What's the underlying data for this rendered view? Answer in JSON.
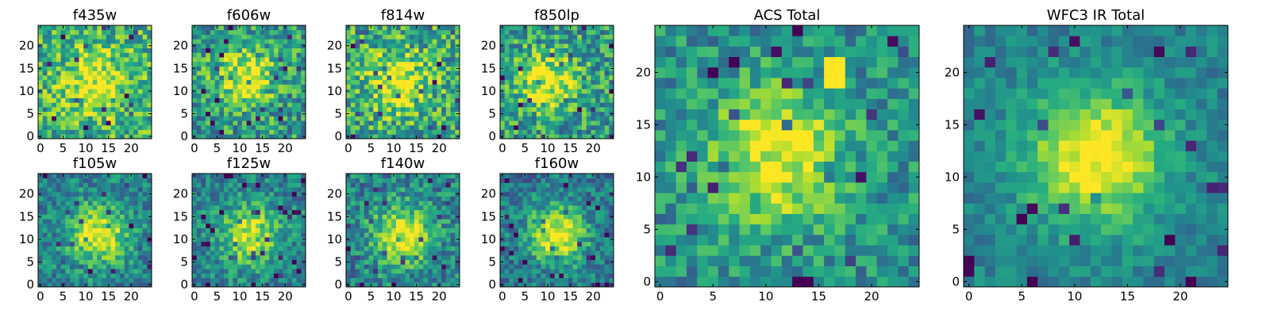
{
  "figure": {
    "panel_count": 10
  },
  "chart_data": [
    {
      "type": "heatmap",
      "title": "f435w",
      "xticks": [
        "0",
        "5",
        "10",
        "15",
        "20"
      ],
      "yticks": [
        "0",
        "5",
        "10",
        "15",
        "20"
      ],
      "grid": [
        25,
        25
      ],
      "xlim": [
        0,
        24
      ],
      "ylim": [
        0,
        24
      ],
      "colormap": "viridis",
      "peak": [
        12,
        12
      ],
      "signal": 0.35,
      "noise": 0.55,
      "base": 0.65,
      "seed": 11
    },
    {
      "type": "heatmap",
      "title": "f606w",
      "xticks": [
        "0",
        "5",
        "10",
        "15",
        "20"
      ],
      "yticks": [
        "0",
        "5",
        "10",
        "15",
        "20"
      ],
      "grid": [
        25,
        25
      ],
      "xlim": [
        0,
        24
      ],
      "ylim": [
        0,
        24
      ],
      "colormap": "viridis",
      "peak": [
        11,
        13
      ],
      "signal": 0.45,
      "noise": 0.55,
      "base": 0.55,
      "seed": 23
    },
    {
      "type": "heatmap",
      "title": "f814w",
      "xticks": [
        "0",
        "5",
        "10",
        "15",
        "20"
      ],
      "yticks": [
        "0",
        "5",
        "10",
        "15",
        "20"
      ],
      "grid": [
        25,
        25
      ],
      "xlim": [
        0,
        24
      ],
      "ylim": [
        0,
        24
      ],
      "colormap": "viridis",
      "peak": [
        11,
        12
      ],
      "signal": 0.45,
      "noise": 0.6,
      "base": 0.6,
      "seed": 37
    },
    {
      "type": "heatmap",
      "title": "f850lp",
      "xticks": [
        "0",
        "5",
        "10",
        "15",
        "20"
      ],
      "yticks": [
        "0",
        "5",
        "10",
        "15",
        "20"
      ],
      "grid": [
        25,
        25
      ],
      "xlim": [
        0,
        24
      ],
      "ylim": [
        0,
        24
      ],
      "colormap": "viridis",
      "peak": [
        10,
        12
      ],
      "signal": 0.45,
      "noise": 0.55,
      "base": 0.55,
      "seed": 41
    },
    {
      "type": "heatmap",
      "title": "f105w",
      "xticks": [
        "0",
        "5",
        "10",
        "15",
        "20"
      ],
      "yticks": [
        "0",
        "5",
        "10",
        "15",
        "20"
      ],
      "grid": [
        25,
        25
      ],
      "xlim": [
        0,
        24
      ],
      "ylim": [
        0,
        24
      ],
      "colormap": "viridis",
      "peak": [
        13,
        11
      ],
      "signal": 0.55,
      "noise": 0.4,
      "base": 0.45,
      "seed": 53
    },
    {
      "type": "heatmap",
      "title": "f125w",
      "xticks": [
        "0",
        "5",
        "10",
        "15",
        "20"
      ],
      "yticks": [
        "0",
        "5",
        "10",
        "15",
        "20"
      ],
      "grid": [
        25,
        25
      ],
      "xlim": [
        0,
        24
      ],
      "ylim": [
        0,
        24
      ],
      "colormap": "viridis",
      "peak": [
        12,
        11
      ],
      "signal": 0.5,
      "noise": 0.4,
      "base": 0.45,
      "seed": 67
    },
    {
      "type": "heatmap",
      "title": "f140w",
      "xticks": [
        "0",
        "5",
        "10",
        "15",
        "20"
      ],
      "yticks": [
        "0",
        "5",
        "10",
        "15",
        "20"
      ],
      "grid": [
        25,
        25
      ],
      "xlim": [
        0,
        24
      ],
      "ylim": [
        0,
        24
      ],
      "colormap": "viridis",
      "peak": [
        12,
        11
      ],
      "signal": 0.55,
      "noise": 0.45,
      "base": 0.45,
      "seed": 79
    },
    {
      "type": "heatmap",
      "title": "f160w",
      "xticks": [
        "0",
        "5",
        "10",
        "15",
        "20"
      ],
      "yticks": [
        "0",
        "5",
        "10",
        "15",
        "20"
      ],
      "grid": [
        25,
        25
      ],
      "xlim": [
        0,
        24
      ],
      "ylim": [
        0,
        24
      ],
      "colormap": "viridis",
      "peak": [
        12,
        11
      ],
      "signal": 0.6,
      "noise": 0.4,
      "base": 0.4,
      "seed": 83
    },
    {
      "type": "heatmap",
      "title": "ACS Total",
      "xticks": [
        "0",
        "5",
        "10",
        "15",
        "20"
      ],
      "yticks": [
        "0",
        "5",
        "10",
        "15",
        "20"
      ],
      "grid": [
        25,
        25
      ],
      "xlim": [
        0,
        24
      ],
      "ylim": [
        0,
        24
      ],
      "colormap": "viridis",
      "peak": [
        11,
        12
      ],
      "signal": 0.5,
      "noise": 0.4,
      "base": 0.5,
      "seed": 97,
      "hotspot": [
        17,
        20
      ]
    },
    {
      "type": "heatmap",
      "title": "WFC3 IR Total",
      "xticks": [
        "0",
        "5",
        "10",
        "15",
        "20"
      ],
      "yticks": [
        "0",
        "5",
        "10",
        "15",
        "20"
      ],
      "grid": [
        25,
        25
      ],
      "xlim": [
        0,
        24
      ],
      "ylim": [
        0,
        24
      ],
      "colormap": "viridis",
      "peak": [
        12,
        12
      ],
      "signal": 0.6,
      "noise": 0.25,
      "base": 0.45,
      "seed": 101
    }
  ]
}
